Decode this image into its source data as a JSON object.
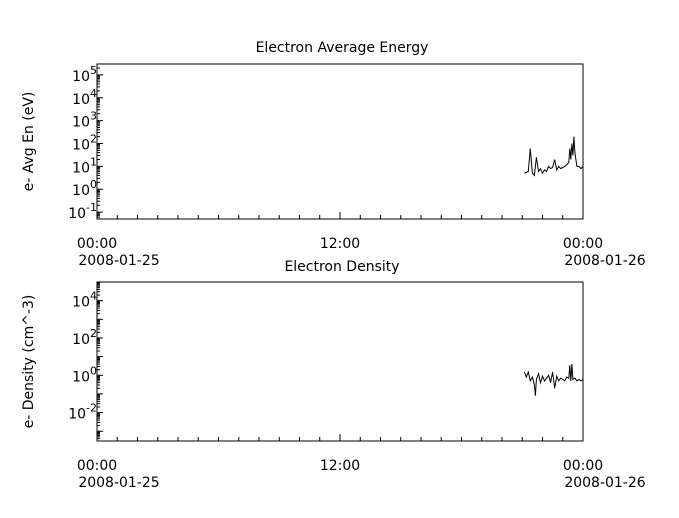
{
  "chart_data": [
    {
      "type": "line",
      "title": "Electron Average Energy",
      "xlabel": "",
      "ylabel": "e- Avg En (eV)",
      "yscale": "log",
      "ylim": [
        0.05,
        300000
      ],
      "xlim": [
        "2008-01-25T00:00",
        "2008-01-26T00:00"
      ],
      "x_ticks": [
        {
          "time": "00:00",
          "date": "2008-01-25"
        },
        {
          "time": "12:00",
          "date": ""
        },
        {
          "time": "00:00",
          "date": "2008-01-26"
        }
      ],
      "y_tick_labels": [
        "10^-1",
        "10^0",
        "10^1",
        "10^2",
        "10^3",
        "10^4",
        "10^5"
      ],
      "series": [
        {
          "x_hours": [
            21.1,
            21.3,
            21.4,
            21.5,
            21.6,
            21.7,
            21.8,
            21.9,
            22.0,
            22.1,
            22.2,
            22.3,
            22.4,
            22.5,
            22.6,
            22.7,
            22.8,
            22.9,
            23.0,
            23.1,
            23.2,
            23.3,
            23.35,
            23.4,
            23.45,
            23.5,
            23.55,
            23.6,
            23.7,
            23.8,
            23.9,
            24.0
          ],
          "values": [
            5,
            6,
            60,
            5,
            4,
            25,
            6,
            8,
            5,
            7,
            6,
            10,
            8,
            9,
            20,
            7,
            10,
            8,
            9,
            10,
            12,
            15,
            60,
            20,
            100,
            30,
            200,
            40,
            10,
            10,
            8,
            10
          ]
        }
      ]
    },
    {
      "type": "line",
      "title": "Electron Density",
      "xlabel": "",
      "ylabel": "e- Density (cm^-3)",
      "yscale": "log",
      "ylim": [
        0.0003,
        100000
      ],
      "xlim": [
        "2008-01-25T00:00",
        "2008-01-26T00:00"
      ],
      "x_ticks": [
        {
          "time": "00:00",
          "date": "2008-01-25"
        },
        {
          "time": "12:00",
          "date": ""
        },
        {
          "time": "00:00",
          "date": "2008-01-26"
        }
      ],
      "y_tick_labels": [
        "10^-2",
        "10^0",
        "10^2",
        "10^4"
      ],
      "series": [
        {
          "x_hours": [
            21.1,
            21.2,
            21.3,
            21.4,
            21.5,
            21.6,
            21.65,
            21.7,
            21.8,
            21.9,
            22.0,
            22.1,
            22.2,
            22.3,
            22.4,
            22.5,
            22.6,
            22.7,
            22.8,
            22.9,
            23.0,
            23.1,
            23.2,
            23.3,
            23.35,
            23.4,
            23.45,
            23.5,
            23.6,
            23.7,
            23.8,
            23.9,
            24.0
          ],
          "values": [
            1.5,
            0.8,
            1.5,
            0.5,
            0.8,
            0.3,
            0.08,
            0.6,
            1.2,
            0.4,
            0.9,
            0.5,
            0.7,
            1.0,
            0.4,
            1.5,
            0.2,
            0.9,
            0.5,
            0.7,
            0.6,
            0.5,
            0.8,
            0.7,
            3.5,
            0.5,
            4.0,
            0.6,
            0.7,
            0.5,
            0.6,
            0.5,
            0.6
          ]
        }
      ]
    }
  ]
}
